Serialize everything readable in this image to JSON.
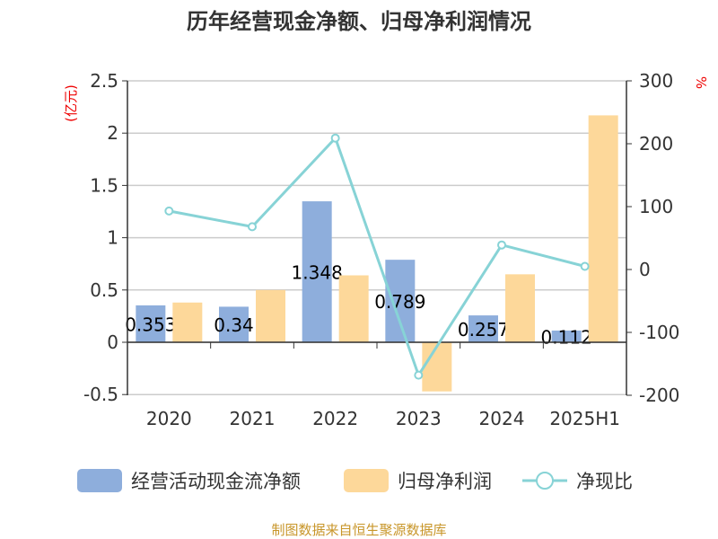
{
  "chart_data": {
    "type": "bar",
    "title": "历年经营现金净额、归母净利润情况",
    "categories": [
      "2020",
      "2021",
      "2022",
      "2023",
      "2024",
      "2025H1"
    ],
    "y_left": {
      "label": "(亿元)",
      "lim": [
        -0.5,
        2.5
      ],
      "ticks": [
        "-0.5",
        "0",
        "0.5",
        "1",
        "1.5",
        "2",
        "2.5"
      ]
    },
    "y_right": {
      "label": "%",
      "lim": [
        -200,
        300
      ],
      "ticks": [
        "-200",
        "-100",
        "0",
        "100",
        "200",
        "300"
      ]
    },
    "grid": true,
    "legend_position": "bottom",
    "series": [
      {
        "name": "经营活动现金流净额",
        "type": "bar",
        "axis": "left",
        "color": "#8eaedc",
        "values": [
          0.353,
          0.34,
          1.348,
          0.789,
          0.257,
          0.112
        ],
        "labels": [
          "0.353",
          "0.34",
          "1.348",
          "0.789",
          "0.257",
          "0.112"
        ]
      },
      {
        "name": "归母净利润",
        "type": "bar",
        "axis": "left",
        "color": "#fdd89a",
        "values": [
          0.38,
          0.5,
          0.64,
          -0.47,
          0.65,
          2.17
        ]
      },
      {
        "name": "净现比",
        "type": "line",
        "axis": "right",
        "color": "#87d3d6",
        "values": [
          93,
          68,
          209,
          -168,
          39,
          5
        ]
      }
    ]
  },
  "footer": "制图数据来自恒生聚源数据库"
}
